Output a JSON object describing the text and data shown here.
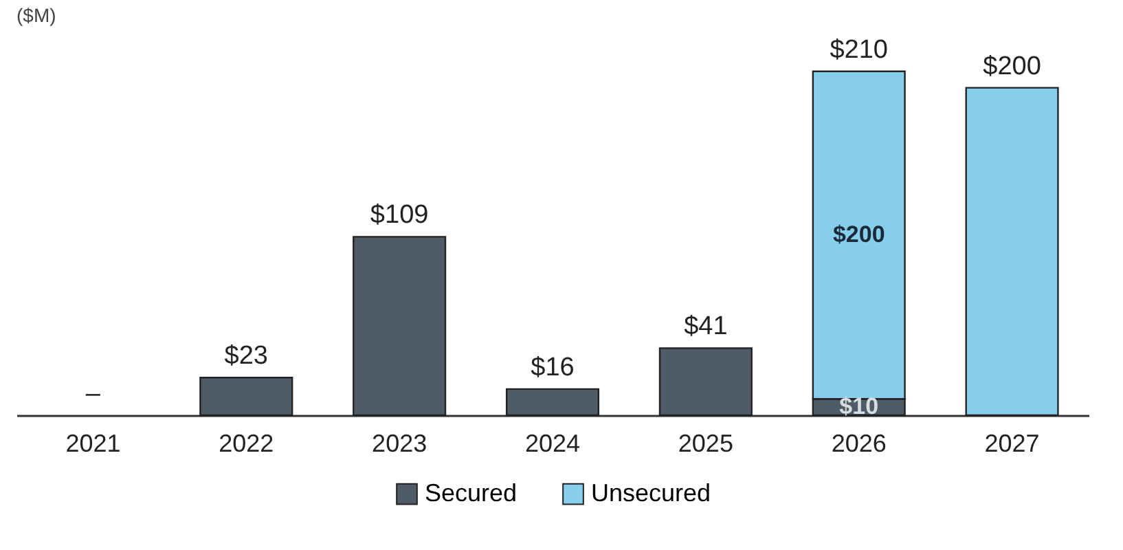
{
  "chart_data": {
    "type": "bar",
    "stacked": true,
    "ylabel": "($M)",
    "categories": [
      "2021",
      "2022",
      "2023",
      "2024",
      "2025",
      "2026",
      "2027"
    ],
    "series": [
      {
        "name": "Secured",
        "color": "#4f5b66",
        "values": [
          null,
          23,
          109,
          16,
          41,
          10,
          null
        ],
        "value_labels": [
          null,
          null,
          null,
          null,
          null,
          "$10",
          null
        ]
      },
      {
        "name": "Unsecured",
        "color": "#87ceeb",
        "values": [
          null,
          null,
          null,
          null,
          null,
          200,
          200
        ],
        "value_labels": [
          null,
          null,
          null,
          null,
          null,
          "$200",
          null
        ]
      }
    ],
    "totals": [
      "–",
      "$23",
      "$109",
      "$16",
      "$41",
      "$210",
      "$200"
    ],
    "legend": "bottom"
  }
}
